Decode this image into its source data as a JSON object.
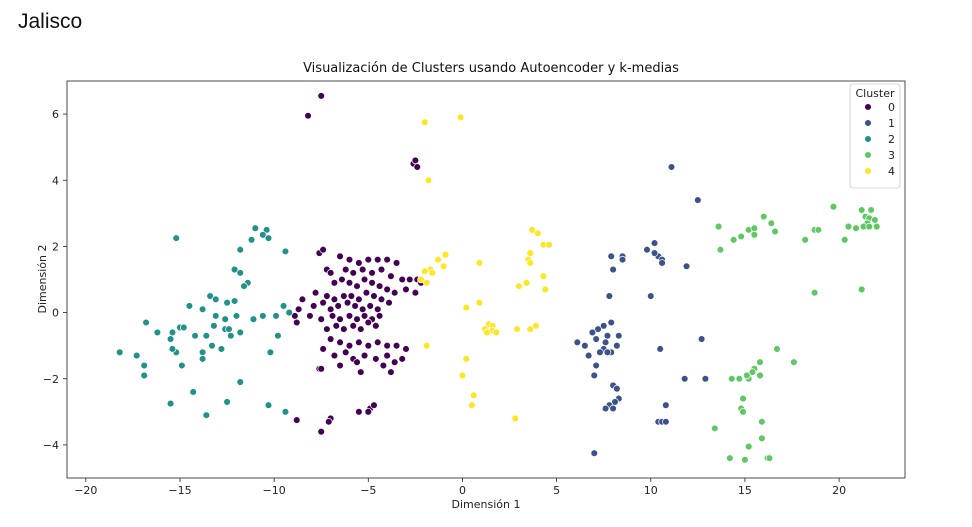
{
  "page": {
    "title": "Jalisco"
  },
  "chart_data": {
    "type": "scatter",
    "title": "Visualización de Clusters usando Autoencoder y k-medias",
    "xlabel": "Dimensión 1",
    "ylabel": "Dimensión 2",
    "xlim": [
      -21,
      23.5
    ],
    "ylim": [
      -5,
      7
    ],
    "xticks": [
      -20,
      -15,
      -10,
      -5,
      0,
      5,
      10,
      15,
      20
    ],
    "yticks": [
      -4,
      -2,
      0,
      2,
      4,
      6
    ],
    "grid": false,
    "legend": {
      "title": "Cluster",
      "placement": "top-right"
    },
    "series": [
      {
        "name": "0",
        "color": "#440154",
        "points": [
          [
            -8.2,
            5.95
          ],
          [
            -7.5,
            6.55
          ],
          [
            -2.6,
            4.5
          ],
          [
            -2.5,
            4.6
          ],
          [
            -2.4,
            4.4
          ],
          [
            -7.6,
            1.8
          ],
          [
            -7.4,
            1.9
          ],
          [
            -7.2,
            1.3
          ],
          [
            -7.0,
            1.2
          ],
          [
            -6.5,
            1.7
          ],
          [
            -6.0,
            1.6
          ],
          [
            -5.5,
            1.5
          ],
          [
            -5.0,
            1.6
          ],
          [
            -4.5,
            1.6
          ],
          [
            -4.0,
            1.6
          ],
          [
            -3.5,
            1.5
          ],
          [
            -6.2,
            1.3
          ],
          [
            -5.8,
            1.2
          ],
          [
            -5.3,
            1.3
          ],
          [
            -4.8,
            1.2
          ],
          [
            -4.3,
            1.3
          ],
          [
            -3.8,
            1.1
          ],
          [
            -3.2,
            1.0
          ],
          [
            -2.8,
            1.0
          ],
          [
            -2.4,
            1.0
          ],
          [
            -2.2,
            0.9
          ],
          [
            -6.8,
            0.9
          ],
          [
            -6.4,
            1.0
          ],
          [
            -6.0,
            0.9
          ],
          [
            -5.6,
            0.8
          ],
          [
            -5.2,
            1.0
          ],
          [
            -4.8,
            0.9
          ],
          [
            -4.4,
            0.8
          ],
          [
            -4.0,
            0.7
          ],
          [
            -3.6,
            0.6
          ],
          [
            -3.0,
            0.7
          ],
          [
            -2.5,
            0.6
          ],
          [
            -7.8,
            0.6
          ],
          [
            -7.2,
            0.5
          ],
          [
            -6.8,
            0.4
          ],
          [
            -6.3,
            0.5
          ],
          [
            -5.9,
            0.5
          ],
          [
            -5.5,
            0.4
          ],
          [
            -5.1,
            0.6
          ],
          [
            -4.7,
            0.5
          ],
          [
            -4.3,
            0.4
          ],
          [
            -3.9,
            0.3
          ],
          [
            -8.5,
            0.4
          ],
          [
            -8.7,
            0.1
          ],
          [
            -7.9,
            0.2
          ],
          [
            -7.4,
            0.3
          ],
          [
            -7.0,
            0.1
          ],
          [
            -6.6,
            0.2
          ],
          [
            -6.1,
            0.3
          ],
          [
            -5.7,
            0.2
          ],
          [
            -5.3,
            0.1
          ],
          [
            -4.9,
            0.2
          ],
          [
            -4.5,
            0.1
          ],
          [
            -8.9,
            -0.1
          ],
          [
            -8.1,
            -0.1
          ],
          [
            -7.5,
            -0.2
          ],
          [
            -6.9,
            -0.1
          ],
          [
            -6.5,
            -0.2
          ],
          [
            -6.0,
            -0.1
          ],
          [
            -5.6,
            -0.2
          ],
          [
            -5.2,
            -0.1
          ],
          [
            -4.8,
            -0.2
          ],
          [
            -4.4,
            -0.1
          ],
          [
            -7.2,
            -0.5
          ],
          [
            -6.7,
            -0.4
          ],
          [
            -6.3,
            -0.5
          ],
          [
            -5.8,
            -0.4
          ],
          [
            -5.4,
            -0.5
          ],
          [
            -5.0,
            -0.3
          ],
          [
            -4.6,
            -0.4
          ],
          [
            -8.8,
            -0.3
          ],
          [
            -7.0,
            -0.8
          ],
          [
            -6.5,
            -0.9
          ],
          [
            -6.0,
            -1.0
          ],
          [
            -5.5,
            -0.9
          ],
          [
            -5.0,
            -1.0
          ],
          [
            -4.5,
            -0.9
          ],
          [
            -4.0,
            -1.0
          ],
          [
            -3.5,
            -1.0
          ],
          [
            -3.0,
            -1.1
          ],
          [
            -7.4,
            -1.1
          ],
          [
            -6.8,
            -1.3
          ],
          [
            -6.2,
            -1.2
          ],
          [
            -5.8,
            -1.4
          ],
          [
            -5.2,
            -1.3
          ],
          [
            -4.6,
            -1.4
          ],
          [
            -4.0,
            -1.3
          ],
          [
            -3.6,
            -1.5
          ],
          [
            -3.2,
            -1.4
          ],
          [
            -7.6,
            -1.7
          ],
          [
            -7.5,
            -1.7
          ],
          [
            -6.5,
            -1.6
          ],
          [
            -5.6,
            -1.5
          ],
          [
            -5.4,
            -1.8
          ],
          [
            -4.2,
            -1.6
          ],
          [
            -3.8,
            -1.8
          ],
          [
            -7.0,
            -3.2
          ],
          [
            -7.1,
            -3.3
          ],
          [
            -5.5,
            -3.0
          ],
          [
            -4.9,
            -2.9
          ],
          [
            -4.7,
            -2.8
          ],
          [
            -5.0,
            -3.0
          ],
          [
            -7.5,
            -3.6
          ],
          [
            -8.8,
            -3.25
          ]
        ]
      },
      {
        "name": "1",
        "color": "#3b528b",
        "points": [
          [
            11.1,
            4.4
          ],
          [
            12.5,
            3.4
          ],
          [
            10.2,
            2.1
          ],
          [
            9.8,
            1.9
          ],
          [
            10.4,
            1.7
          ],
          [
            10.6,
            1.6
          ],
          [
            10.6,
            1.5
          ],
          [
            11.9,
            1.4
          ],
          [
            8.5,
            1.7
          ],
          [
            7.9,
            1.7
          ],
          [
            8.5,
            1.6
          ],
          [
            8.0,
            1.3
          ],
          [
            10.2,
            1.8
          ],
          [
            7.8,
            0.5
          ],
          [
            10.0,
            0.5
          ],
          [
            7.5,
            -0.4
          ],
          [
            7.9,
            -0.3
          ],
          [
            7.2,
            -0.5
          ],
          [
            6.9,
            -0.6
          ],
          [
            7.7,
            -0.7
          ],
          [
            8.3,
            -0.7
          ],
          [
            7.1,
            -0.8
          ],
          [
            7.6,
            -0.9
          ],
          [
            6.5,
            -1.0
          ],
          [
            6.1,
            -0.9
          ],
          [
            7.5,
            -1.1
          ],
          [
            7.3,
            -1.2
          ],
          [
            8.2,
            -1.0
          ],
          [
            7.9,
            -1.2
          ],
          [
            7.7,
            -1.2
          ],
          [
            6.7,
            -1.3
          ],
          [
            10.5,
            -1.1
          ],
          [
            12.7,
            -0.8
          ],
          [
            7.1,
            -1.6
          ],
          [
            7.0,
            -1.9
          ],
          [
            8.0,
            -2.2
          ],
          [
            8.2,
            -2.3
          ],
          [
            11.8,
            -2.0
          ],
          [
            12.9,
            -2.0
          ],
          [
            8.3,
            -2.6
          ],
          [
            8.1,
            -2.7
          ],
          [
            7.8,
            -2.8
          ],
          [
            7.6,
            -2.9
          ],
          [
            8.0,
            -2.9
          ],
          [
            10.8,
            -2.8
          ],
          [
            10.4,
            -3.3
          ],
          [
            10.6,
            -3.3
          ],
          [
            10.8,
            -3.3
          ],
          [
            7.0,
            -4.25
          ]
        ]
      },
      {
        "name": "2",
        "color": "#21918c",
        "points": [
          [
            -15.2,
            2.25
          ],
          [
            -11.0,
            2.55
          ],
          [
            -10.4,
            2.5
          ],
          [
            -10.6,
            2.35
          ],
          [
            -10.3,
            2.25
          ],
          [
            -11.2,
            2.2
          ],
          [
            -9.4,
            1.85
          ],
          [
            -11.8,
            1.9
          ],
          [
            -12.1,
            1.3
          ],
          [
            -11.8,
            1.2
          ],
          [
            -11.4,
            0.9
          ],
          [
            -11.6,
            0.8
          ],
          [
            -13.4,
            0.5
          ],
          [
            -13.1,
            0.4
          ],
          [
            -12.1,
            0.35
          ],
          [
            -12.5,
            0.3
          ],
          [
            -9.5,
            0.2
          ],
          [
            -9.2,
            0.0
          ],
          [
            -9.9,
            -0.1
          ],
          [
            -10.6,
            -0.1
          ],
          [
            -11.1,
            -0.2
          ],
          [
            -12.0,
            -0.1
          ],
          [
            -12.6,
            -0.2
          ],
          [
            -13.1,
            -0.1
          ],
          [
            -13.8,
            0.1
          ],
          [
            -14.5,
            0.2
          ],
          [
            -13.2,
            -0.4
          ],
          [
            -12.6,
            -0.5
          ],
          [
            -15.0,
            -0.45
          ],
          [
            -14.8,
            -0.45
          ],
          [
            -15.4,
            -0.6
          ],
          [
            -16.2,
            -0.6
          ],
          [
            -11.8,
            -0.6
          ],
          [
            -12.3,
            -0.7
          ],
          [
            -12.4,
            -0.5
          ],
          [
            -13.6,
            -0.7
          ],
          [
            -14.2,
            -0.7
          ],
          [
            -9.8,
            -0.7
          ],
          [
            -15.5,
            -0.8
          ],
          [
            -16.8,
            -0.3
          ],
          [
            -13.3,
            -1.0
          ],
          [
            -13.8,
            -1.2
          ],
          [
            -12.8,
            -1.1
          ],
          [
            -15.2,
            -1.2
          ],
          [
            -15.4,
            -1.1
          ],
          [
            -10.2,
            -1.2
          ],
          [
            -18.2,
            -1.2
          ],
          [
            -17.3,
            -1.3
          ],
          [
            -13.8,
            -1.4
          ],
          [
            -16.9,
            -1.6
          ],
          [
            -14.9,
            -1.6
          ],
          [
            -16.9,
            -1.9
          ],
          [
            -11.8,
            -2.1
          ],
          [
            -14.3,
            -2.4
          ],
          [
            -12.5,
            -2.7
          ],
          [
            -15.5,
            -2.75
          ],
          [
            -10.3,
            -2.8
          ],
          [
            -9.4,
            -3.0
          ],
          [
            -13.6,
            -3.1
          ]
        ]
      },
      {
        "name": "3",
        "color": "#5ec962",
        "points": [
          [
            19.7,
            3.2
          ],
          [
            21.2,
            3.1
          ],
          [
            21.7,
            3.1
          ],
          [
            21.4,
            2.9
          ],
          [
            21.6,
            2.85
          ],
          [
            21.9,
            2.8
          ],
          [
            21.5,
            2.7
          ],
          [
            21.3,
            2.6
          ],
          [
            20.9,
            2.55
          ],
          [
            21.6,
            2.6
          ],
          [
            22.0,
            2.6
          ],
          [
            20.5,
            2.6
          ],
          [
            20.3,
            2.2
          ],
          [
            16.0,
            2.9
          ],
          [
            16.4,
            2.7
          ],
          [
            16.6,
            2.45
          ],
          [
            18.7,
            2.5
          ],
          [
            18.9,
            2.5
          ],
          [
            18.2,
            2.2
          ],
          [
            15.2,
            2.5
          ],
          [
            15.5,
            2.55
          ],
          [
            15.5,
            2.35
          ],
          [
            14.8,
            2.3
          ],
          [
            13.6,
            2.6
          ],
          [
            14.4,
            2.2
          ],
          [
            13.7,
            1.9
          ],
          [
            18.7,
            0.6
          ],
          [
            21.2,
            0.7
          ],
          [
            16.7,
            -1.1
          ],
          [
            17.6,
            -1.5
          ],
          [
            15.8,
            -1.5
          ],
          [
            15.5,
            -1.7
          ],
          [
            15.4,
            -1.8
          ],
          [
            15.2,
            -2.0
          ],
          [
            15.1,
            -1.9
          ],
          [
            15.8,
            -1.9
          ],
          [
            14.7,
            -2.0
          ],
          [
            14.3,
            -2.0
          ],
          [
            14.9,
            -2.6
          ],
          [
            14.8,
            -2.9
          ],
          [
            14.9,
            -3.0
          ],
          [
            15.9,
            -3.3
          ],
          [
            15.9,
            -3.8
          ],
          [
            13.4,
            -3.5
          ],
          [
            15.2,
            -4.05
          ],
          [
            14.2,
            -4.4
          ],
          [
            15.0,
            -4.45
          ],
          [
            16.2,
            -4.4
          ],
          [
            16.3,
            -4.4
          ]
        ]
      },
      {
        "name": "4",
        "color": "#fde725",
        "points": [
          [
            -2.0,
            5.75
          ],
          [
            -0.1,
            5.9
          ],
          [
            -1.8,
            4.0
          ],
          [
            -0.9,
            1.75
          ],
          [
            -1.3,
            1.6
          ],
          [
            -1.0,
            1.4
          ],
          [
            0.9,
            1.5
          ],
          [
            -1.7,
            1.3
          ],
          [
            -2.0,
            1.25
          ],
          [
            -1.6,
            1.2
          ],
          [
            -2.2,
            1.0
          ],
          [
            -1.9,
            0.9
          ],
          [
            3.7,
            2.5
          ],
          [
            4.0,
            2.4
          ],
          [
            4.3,
            2.05
          ],
          [
            4.6,
            2.05
          ],
          [
            3.6,
            1.8
          ],
          [
            3.5,
            1.6
          ],
          [
            3.6,
            1.5
          ],
          [
            4.3,
            1.1
          ],
          [
            3.4,
            0.9
          ],
          [
            3.0,
            0.8
          ],
          [
            4.4,
            0.7
          ],
          [
            0.9,
            0.3
          ],
          [
            0.2,
            0.15
          ],
          [
            1.4,
            -0.35
          ],
          [
            1.6,
            -0.4
          ],
          [
            1.2,
            -0.5
          ],
          [
            1.6,
            -0.55
          ],
          [
            1.3,
            -0.6
          ],
          [
            1.8,
            -0.6
          ],
          [
            2.9,
            -0.5
          ],
          [
            3.6,
            -0.5
          ],
          [
            3.9,
            -0.4
          ],
          [
            -1.9,
            -1.0
          ],
          [
            0.2,
            -1.4
          ],
          [
            0.0,
            -1.9
          ],
          [
            0.6,
            -2.5
          ],
          [
            0.5,
            -2.8
          ],
          [
            2.8,
            -3.2
          ]
        ]
      }
    ]
  }
}
